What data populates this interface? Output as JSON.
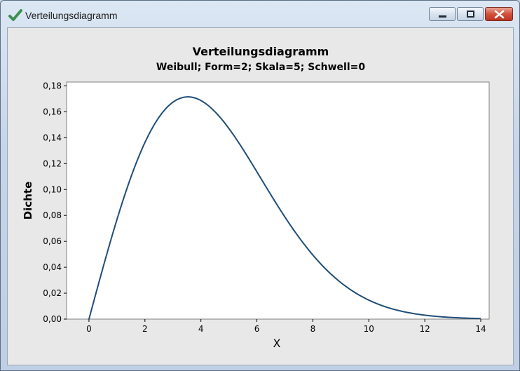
{
  "window": {
    "title": "Verteilungsdiagramm",
    "accent_color": "#3c8f52",
    "icons": {
      "app": "checkmark-icon",
      "minimize": "minimize-icon",
      "maximize": "maximize-icon",
      "close": "close-icon"
    }
  },
  "chart_data": {
    "type": "line",
    "title": "Verteilungsdiagramm",
    "subtitle": "Weibull; Form=2; Skala=5; Schwell=0",
    "xlabel": "X",
    "ylabel": "Dichte",
    "xlim": [
      -0.8,
      14.3
    ],
    "ylim": [
      0,
      0.183
    ],
    "x_ticks": [
      0,
      2,
      4,
      6,
      8,
      10,
      12,
      14
    ],
    "y_ticks": [
      0,
      0.02,
      0.04,
      0.06,
      0.08,
      0.1,
      0.12,
      0.14,
      0.16,
      0.18
    ],
    "x_tick_labels": [
      "0",
      "2",
      "4",
      "6",
      "8",
      "10",
      "12",
      "14"
    ],
    "y_tick_labels": [
      "0,00",
      "0,02",
      "0,04",
      "0,06",
      "0,08",
      "0,10",
      "0,12",
      "0,14",
      "0,16",
      "0,18"
    ],
    "grid": false,
    "legend": "none",
    "line_color": "#1f4e79",
    "series": [
      {
        "distribution": "Weibull",
        "shape": 2,
        "scale": 5,
        "threshold": 0,
        "x": [
          0,
          0.5,
          1,
          1.5,
          2,
          2.5,
          3,
          3.5,
          4,
          4.5,
          5,
          5.5,
          6,
          6.5,
          7,
          7.5,
          8,
          8.5,
          9,
          9.5,
          10,
          10.5,
          11,
          11.5,
          12,
          12.5,
          13,
          13.5,
          14
        ],
        "y": [
          0,
          0.0396,
          0.0769,
          0.1097,
          0.1363,
          0.1558,
          0.1674,
          0.1715,
          0.1687,
          0.1601,
          0.1472,
          0.1314,
          0.1141,
          0.0967,
          0.0789,
          0.0632,
          0.0493,
          0.0375,
          0.028,
          0.0203,
          0.0147,
          0.0102,
          0.0069,
          0.0046,
          0.003,
          0.0019,
          0.0012,
          0.0007,
          0.0004
        ]
      }
    ]
  }
}
